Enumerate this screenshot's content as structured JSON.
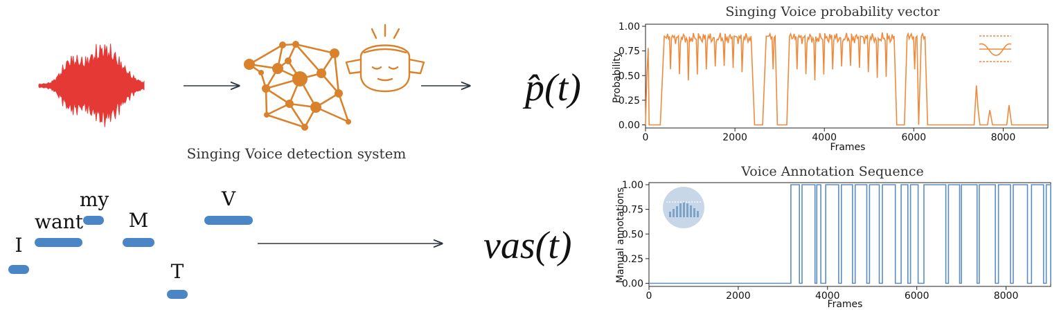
{
  "system": {
    "caption": "Singing Voice detection system",
    "output_symbol": "p̂(t)"
  },
  "annotation": {
    "output_symbol": "vas(t)",
    "words": [
      "I",
      "want",
      "my",
      "M",
      "T",
      "V"
    ]
  },
  "colors": {
    "waveform": "#e53935",
    "network": "#d9822b",
    "note_bar": "#4a86c5",
    "probability_line": "#ef8a3c",
    "annotation_line": "#5b8cc0",
    "arrow": "#2b3447"
  },
  "icons": [
    "waveform-icon",
    "neural-network-icon",
    "listener-face-icon",
    "filter-curve-icon",
    "spectrum-badge-icon"
  ],
  "chart_data": [
    {
      "type": "line",
      "title": "Singing Voice probability vector",
      "xlabel": "Frames",
      "ylabel": "Probability",
      "xlim": [
        0,
        9000
      ],
      "ylim": [
        0,
        1.0
      ],
      "xticks": [
        "0",
        "2000",
        "4000",
        "6000",
        "8000"
      ],
      "yticks": [
        "0.00",
        "0.25",
        "0.50",
        "0.75",
        "1.00"
      ],
      "grid": false,
      "series": [
        {
          "x": [
            0,
            30,
            60,
            80,
            110,
            200,
            330,
            420,
            470,
            2360,
            2440,
            2500,
            2620,
            2700,
            2760,
            2900,
            2950,
            3020,
            3160,
            3220,
            3300,
            5560,
            5620,
            5700,
            5790,
            5850,
            5920,
            6070,
            6110,
            6170,
            6250,
            6310,
            7350,
            7400,
            7440,
            7480,
            7650,
            7700,
            7760,
            8080,
            8130,
            8190,
            8240,
            9000
          ],
          "y": [
            0.0,
            0.5,
            0.78,
            0.0,
            0.0,
            0.0,
            0.0,
            0.9,
            0.88,
            0.9,
            0.0,
            0.0,
            0.0,
            0.9,
            0.9,
            0.9,
            0.0,
            0.0,
            0.0,
            0.9,
            0.88,
            0.9,
            0.0,
            0.0,
            0.0,
            0.9,
            0.9,
            0.9,
            0.0,
            0.9,
            0.9,
            0.0,
            0.0,
            0.4,
            0.15,
            0.0,
            0.0,
            0.15,
            0.0,
            0.0,
            0.2,
            0.0,
            0.0,
            0.0
          ]
        }
      ]
    },
    {
      "type": "line",
      "title": "Voice Annotation Sequence",
      "xlabel": "Frames",
      "ylabel": "Manual annotations",
      "xlim": [
        0,
        9000
      ],
      "ylim": [
        0,
        1.0
      ],
      "xticks": [
        "0",
        "2000",
        "4000",
        "6000",
        "8000"
      ],
      "yticks": [
        "0.00",
        "0.25",
        "0.50",
        "0.75",
        "1.00"
      ],
      "grid": false,
      "step": true,
      "series": [
        {
          "segments_on": [
            [
              3180,
              3370
            ],
            [
              3430,
              3720
            ],
            [
              3760,
              3850
            ],
            [
              3960,
              4250
            ],
            [
              4310,
              4560
            ],
            [
              4620,
              4880
            ],
            [
              4940,
              5160
            ],
            [
              5230,
              5520
            ],
            [
              5650,
              5800
            ],
            [
              5860,
              6030
            ],
            [
              6160,
              6650
            ],
            [
              6710,
              6960
            ],
            [
              7000,
              7350
            ],
            [
              7400,
              7760
            ],
            [
              7830,
              8100
            ],
            [
              8160,
              8480
            ],
            [
              8570,
              8840
            ],
            [
              8900,
              9000
            ]
          ]
        }
      ]
    }
  ]
}
